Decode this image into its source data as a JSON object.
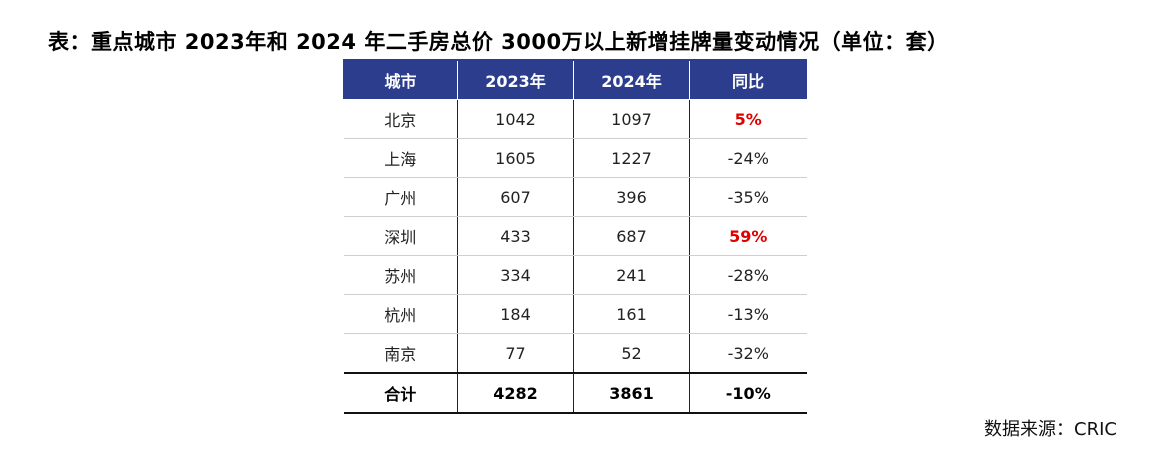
{
  "title": "表：重点城市 2023年和 2024 年二手房总价 3000万以上新增挂牌量变动情况（单位：套）",
  "table": {
    "headers": [
      "城市",
      "2023年",
      "2024年",
      "同比"
    ],
    "rows": [
      {
        "city": "北京",
        "y2023": "1042",
        "y2024": "1097",
        "yoy": "5%"
      },
      {
        "city": "上海",
        "y2023": "1605",
        "y2024": "1227",
        "yoy": "-24%"
      },
      {
        "city": "广州",
        "y2023": "607",
        "y2024": "396",
        "yoy": "-35%"
      },
      {
        "city": "深圳",
        "y2023": "433",
        "y2024": "687",
        "yoy": "59%"
      },
      {
        "city": "苏州",
        "y2023": "334",
        "y2024": "241",
        "yoy": "-28%"
      },
      {
        "city": "杭州",
        "y2023": "184",
        "y2024": "161",
        "yoy": "-13%"
      },
      {
        "city": "南京",
        "y2023": "77",
        "y2024": "52",
        "yoy": "-32%"
      }
    ],
    "total": {
      "city": "合计",
      "y2023": "4282",
      "y2024": "3861",
      "yoy": "-10%"
    }
  },
  "colors": {
    "header_bg": "#2b3d8c",
    "positive_text": "#e00000"
  },
  "source": "数据来源：CRIC"
}
